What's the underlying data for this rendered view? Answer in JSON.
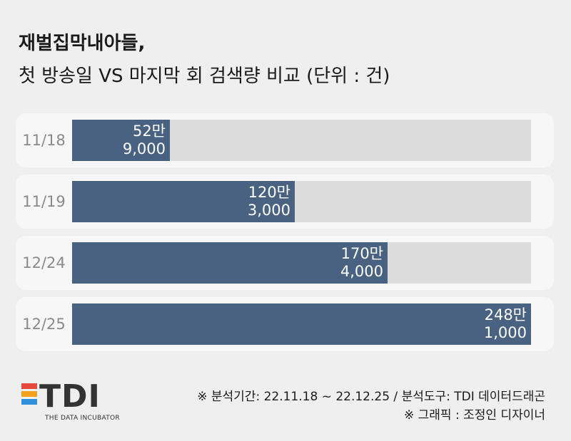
{
  "title_line1": "재벌집막내아들,",
  "title_line2": "첫 방송일 VS 마지막 회 검색량 비교 (단위 : 건)",
  "chart_data": {
    "type": "bar",
    "orientation": "horizontal",
    "categories": [
      "11/18",
      "11/19",
      "12/24",
      "12/25"
    ],
    "values": [
      529000,
      1203000,
      1704000,
      2481000
    ],
    "value_labels": [
      "52만\n9,000",
      "120만\n3,000",
      "170만\n4,000",
      "248만\n1,000"
    ],
    "xlim": [
      0,
      2481000
    ],
    "grid": false,
    "bar_color": "#4a6282",
    "track_color": "#dcdcdc"
  },
  "footer": {
    "note1": "※ 분석기간: 22.11.18 ~ 22.12.25 / 분석도구: TDI 데이터드래곤",
    "note2": "※ 그래픽 : 조정인 디자이너"
  },
  "logo": {
    "text": "TDI",
    "subtitle": "THE DATA INCUBATOR",
    "colors": [
      "#e8473b",
      "#f4a11d",
      "#2f8fd8"
    ]
  }
}
